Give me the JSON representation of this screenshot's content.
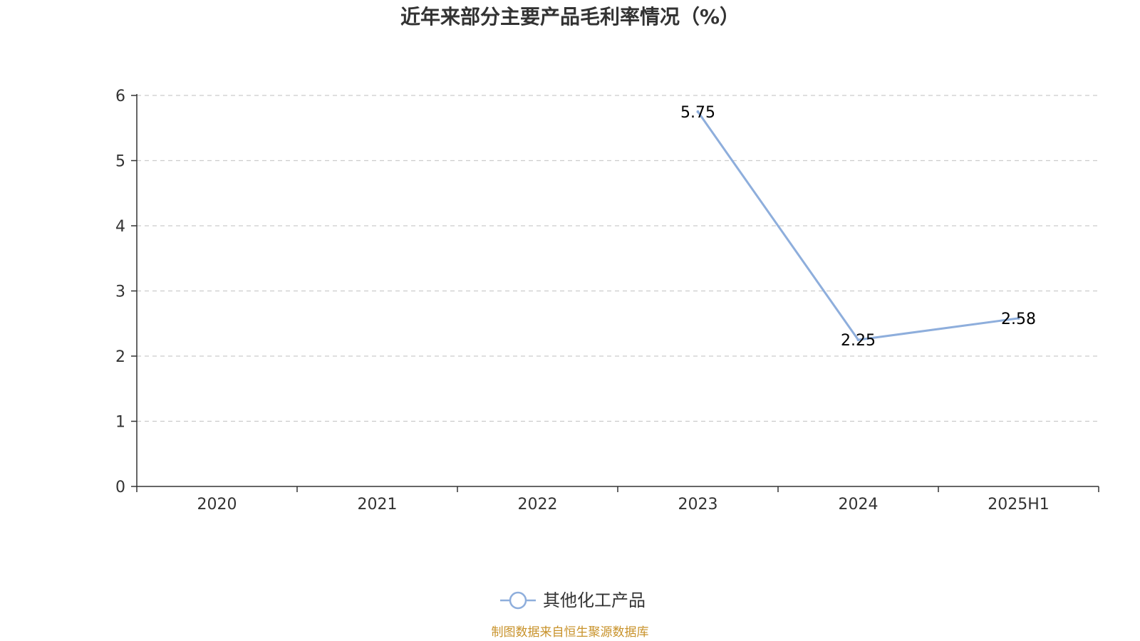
{
  "chart_data": {
    "type": "line",
    "title": "近年来部分主要产品毛利率情况（%）",
    "categories": [
      "2020",
      "2021",
      "2022",
      "2023",
      "2024",
      "2025H1"
    ],
    "series": [
      {
        "name": "其他化工产品",
        "values": [
          null,
          null,
          null,
          5.75,
          2.25,
          2.58
        ],
        "labels": [
          "",
          "",
          "",
          "5.75",
          "2.25",
          "2.58"
        ],
        "color": "#8eaedc"
      }
    ],
    "ylim": [
      0,
      6
    ],
    "yticks": [
      "0",
      "1",
      "2",
      "3",
      "4",
      "5",
      "6"
    ],
    "grid": true,
    "legend_position": "bottom-center"
  },
  "footer": {
    "source": "制图数据来自恒生聚源数据库",
    "source_color": "#c8922a"
  },
  "colors": {
    "axis": "#333333",
    "grid": "#cccccc",
    "text": "#333333"
  }
}
